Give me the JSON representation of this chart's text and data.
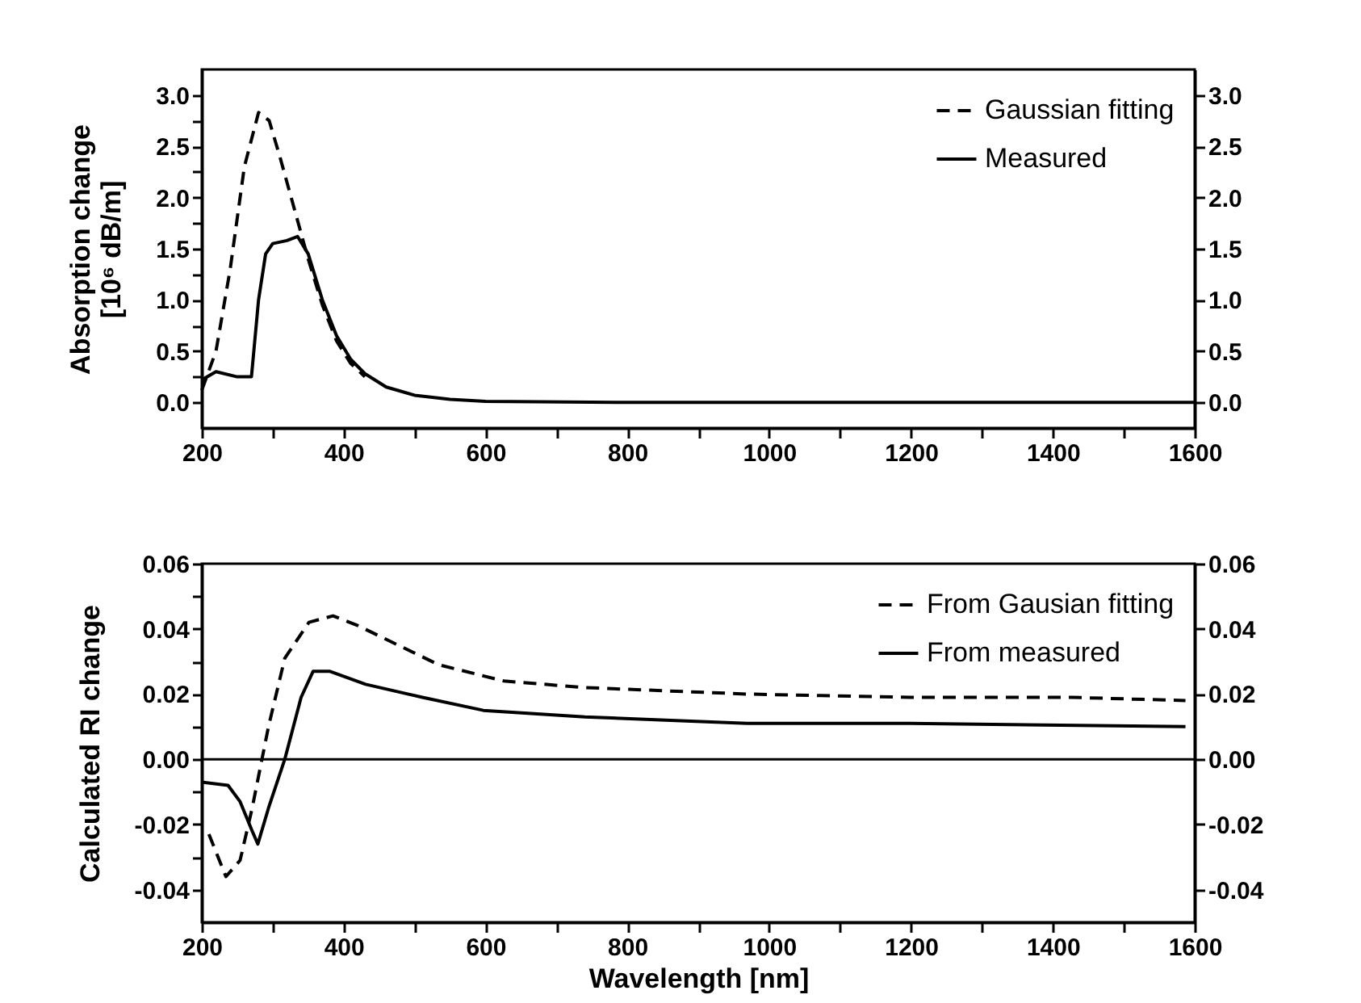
{
  "chart_data": [
    {
      "type": "line",
      "ylabel": "Absorption change\n[10⁶ dB/m]",
      "legend": "top right",
      "grid": false,
      "marker": "none",
      "xlim": [
        200,
        1600
      ],
      "xticks": [
        200,
        {
          "value": 300,
          "label": null
        },
        400,
        {
          "value": 500,
          "label": null
        },
        600,
        {
          "value": 700,
          "label": null
        },
        800,
        {
          "value": 900,
          "label": null
        },
        1000,
        {
          "value": 1100,
          "label": null
        },
        1200,
        {
          "value": 1300,
          "label": null
        },
        1400,
        {
          "value": 1500,
          "label": null
        },
        1600
      ],
      "ylim": [
        -0.25,
        3.25
      ],
      "yticks": [
        {
          "value": 0,
          "label": "0.0"
        },
        {
          "value": 0.25,
          "label": null
        },
        {
          "value": 0.5,
          "label": "0.5"
        },
        {
          "value": 0.75,
          "label": null
        },
        {
          "value": 1,
          "label": "1.0"
        },
        {
          "value": 1.25,
          "label": null
        },
        {
          "value": 1.5,
          "label": "1.5"
        },
        {
          "value": 1.75,
          "label": null
        },
        {
          "value": 2,
          "label": "2.0"
        },
        {
          "value": 2.25,
          "label": null
        },
        {
          "value": 2.5,
          "label": "2.5"
        },
        {
          "value": 2.75,
          "label": null
        },
        {
          "value": 3,
          "label": "3.0"
        }
      ],
      "y2lim": [
        -0.25,
        3.25
      ],
      "y2ticks": [
        {
          "value": 0,
          "label": "0.0"
        },
        {
          "value": 0.5,
          "label": "0.5"
        },
        {
          "value": 1,
          "label": "1.0"
        },
        {
          "value": 1.5,
          "label": "1.5"
        },
        {
          "value": 2,
          "label": "2.0"
        },
        {
          "value": 2.5,
          "label": "2.5"
        },
        {
          "value": 3,
          "label": "3.0"
        }
      ],
      "series": [
        {
          "name": "Gaussian fitting",
          "color": "#000000",
          "line_style": "dashed",
          "x": [
            200,
            220,
            240,
            260,
            280,
            295,
            310,
            330,
            350,
            370,
            390,
            410,
            430
          ],
          "values": [
            0.12,
            0.5,
            1.3,
            2.3,
            2.83,
            2.75,
            2.4,
            1.9,
            1.4,
            0.95,
            0.6,
            0.38,
            0.25
          ]
        },
        {
          "name": "Measured",
          "color": "#000000",
          "line_style": "solid",
          "x": [
            200,
            220,
            250,
            270,
            280,
            290,
            300,
            320,
            335,
            350,
            370,
            390,
            410,
            430,
            460,
            500,
            550,
            600,
            800,
            1600
          ],
          "values": [
            0.22,
            0.3,
            0.25,
            0.25,
            1.0,
            1.45,
            1.55,
            1.58,
            1.62,
            1.45,
            1.0,
            0.65,
            0.42,
            0.28,
            0.15,
            0.07,
            0.03,
            0.01,
            0.0,
            0.0
          ]
        }
      ]
    },
    {
      "type": "line",
      "xlabel": "Wavelength  [nm]",
      "ylabel": "Calculated RI change",
      "legend": "top right",
      "grid": false,
      "marker": "none",
      "xlim": [
        200,
        1600
      ],
      "xticks": [
        200,
        {
          "value": 300,
          "label": null
        },
        400,
        {
          "value": 500,
          "label": null
        },
        600,
        {
          "value": 700,
          "label": null
        },
        800,
        {
          "value": 900,
          "label": null
        },
        1000,
        {
          "value": 1100,
          "label": null
        },
        1200,
        {
          "value": 1300,
          "label": null
        },
        1400,
        {
          "value": 1500,
          "label": null
        },
        1600
      ],
      "ylim": [
        -0.05,
        0.06
      ],
      "yticks": [
        {
          "value": -0.04,
          "label": "-0.04"
        },
        {
          "value": -0.03,
          "label": null
        },
        {
          "value": -0.02,
          "label": "-0.02"
        },
        {
          "value": -0.01,
          "label": null
        },
        {
          "value": 0,
          "label": "0.00"
        },
        {
          "value": 0.01,
          "label": null
        },
        {
          "value": 0.02,
          "label": "0.02"
        },
        {
          "value": 0.03,
          "label": null
        },
        {
          "value": 0.04,
          "label": "0.04"
        },
        {
          "value": 0.05,
          "label": null
        },
        {
          "value": 0.06,
          "label": "0.06"
        }
      ],
      "y2lim": [
        -0.05,
        0.06
      ],
      "y2ticks": [
        {
          "value": -0.04,
          "label": "-0.04"
        },
        {
          "value": -0.02,
          "label": "-0.02"
        },
        {
          "value": 0,
          "label": "0.00"
        },
        {
          "value": 0.02,
          "label": "0.02"
        },
        {
          "value": 0.04,
          "label": "0.04"
        },
        {
          "value": 0.06,
          "label": "0.06"
        }
      ],
      "ref_lines": [
        {
          "axis": "y",
          "value": 0,
          "color": "#000000",
          "line_style": "solid"
        }
      ],
      "series": [
        {
          "name": "From Gausian fitting",
          "color": "#000000",
          "line_style": "dashed",
          "x": [
            210,
            234,
            254,
            271,
            294,
            317,
            351,
            385,
            420,
            477,
            534,
            626,
            740,
            854,
            969,
            1198,
            1426,
            1587
          ],
          "values": [
            -0.023,
            -0.036,
            -0.031,
            -0.015,
            0.01,
            0.031,
            0.042,
            0.044,
            0.041,
            0.035,
            0.029,
            0.024,
            0.022,
            0.021,
            0.02,
            0.019,
            0.019,
            0.018
          ]
        },
        {
          "name": "From measured",
          "color": "#000000",
          "line_style": "solid",
          "x": [
            200,
            237,
            254,
            271,
            279,
            294,
            317,
            340,
            357,
            380,
            431,
            511,
            597,
            740,
            854,
            969,
            1198,
            1587
          ],
          "values": [
            -0.007,
            -0.008,
            -0.013,
            -0.022,
            -0.026,
            -0.015,
            0.0,
            0.019,
            0.027,
            0.027,
            0.023,
            0.019,
            0.015,
            0.013,
            0.012,
            0.011,
            0.011,
            0.01
          ]
        }
      ]
    }
  ]
}
